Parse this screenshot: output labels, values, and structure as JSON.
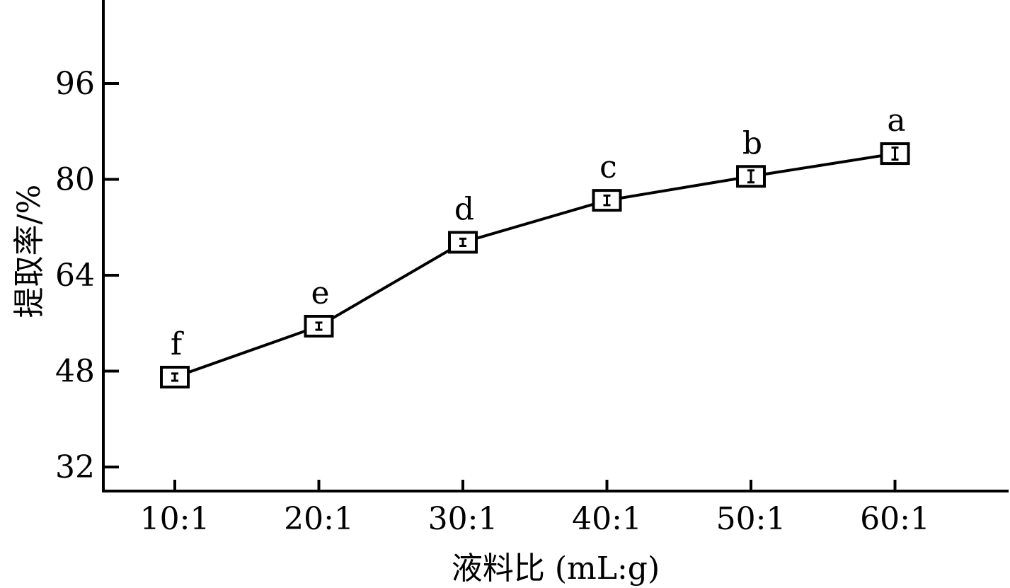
{
  "chart_data": {
    "type": "line",
    "categories": [
      "10:1",
      "20:1",
      "30:1",
      "40:1",
      "50:1",
      "60:1"
    ],
    "series": [
      {
        "values": [
          47.0,
          55.5,
          69.5,
          76.5,
          80.5,
          84.3
        ],
        "errors": [
          0.6,
          0.6,
          0.6,
          0.8,
          1.0,
          1.0
        ],
        "significance_labels": [
          "f",
          "e",
          "d",
          "c",
          "b",
          "a"
        ]
      }
    ],
    "xlabel": "液料比 (mL:g)",
    "ylabel": "提取率/%",
    "yticks": [
      32,
      48,
      64,
      80,
      96
    ],
    "ylim": [
      28,
      108
    ],
    "marker": "open-square",
    "color": "#000000"
  }
}
